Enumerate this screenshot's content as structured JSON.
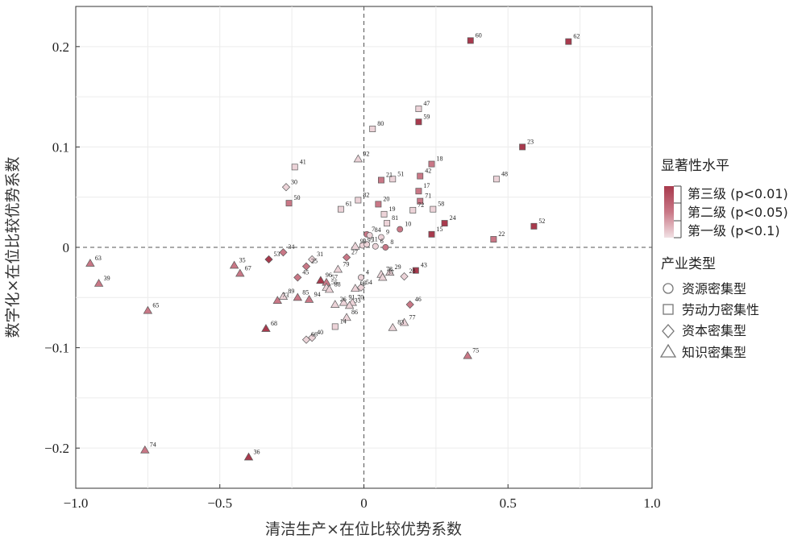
{
  "chart_data": {
    "type": "scatter",
    "xlabel": "清洁生产×在位比较优势系数",
    "ylabel": "数字化×在位比较优势系数",
    "xlim": [
      -1.0,
      1.0
    ],
    "ylim": [
      -0.24,
      0.24
    ],
    "x_ticks": [
      -1.0,
      -0.5,
      0,
      0.5,
      1.0
    ],
    "x_tick_labels": [
      "−1.0",
      "−0.5",
      "0",
      "0.5",
      "1.0"
    ],
    "y_ticks": [
      -0.2,
      -0.1,
      0,
      0.1,
      0.2
    ],
    "y_tick_labels": [
      "−0.2",
      "−0.1",
      "0",
      "0.1",
      "0.2"
    ],
    "grid": true,
    "reference_lines": {
      "x": 0,
      "y": 0
    },
    "legend_significance": {
      "title": "显著性水平",
      "items": [
        {
          "label": "第三级 (p<0.01)",
          "level": 3
        },
        {
          "label": "第二级 (p<0.05)",
          "level": 2
        },
        {
          "label": "第一级 (p<0.1)",
          "level": 1
        }
      ]
    },
    "legend_type": {
      "title": "产业类型",
      "items": [
        {
          "label": "资源密集型",
          "shape": "circle"
        },
        {
          "label": "劳动力密集性",
          "shape": "square"
        },
        {
          "label": "资本密集型",
          "shape": "diamond"
        },
        {
          "label": "知识密集型",
          "shape": "triangle"
        }
      ]
    },
    "colors": {
      "level3": "#a83a4d",
      "level2": "#c97786",
      "level1": "#ecd3d8",
      "edge": "#5a5a5a"
    },
    "points": [
      {
        "id": "62",
        "x": 0.71,
        "y": 0.205,
        "shape": "square",
        "level": 3
      },
      {
        "id": "60",
        "x": 0.37,
        "y": 0.206,
        "shape": "square",
        "level": 3
      },
      {
        "id": "47",
        "x": 0.19,
        "y": 0.138,
        "shape": "square",
        "level": 1
      },
      {
        "id": "59",
        "x": 0.19,
        "y": 0.125,
        "shape": "square",
        "level": 3
      },
      {
        "id": "80",
        "x": 0.03,
        "y": 0.118,
        "shape": "square",
        "level": 1
      },
      {
        "id": "23",
        "x": 0.55,
        "y": 0.1,
        "shape": "square",
        "level": 3
      },
      {
        "id": "18",
        "x": 0.235,
        "y": 0.083,
        "shape": "square",
        "level": 2
      },
      {
        "id": "92",
        "x": -0.02,
        "y": 0.088,
        "shape": "triangle",
        "level": 1
      },
      {
        "id": "41",
        "x": -0.24,
        "y": 0.08,
        "shape": "square",
        "level": 1
      },
      {
        "id": "42",
        "x": 0.195,
        "y": 0.071,
        "shape": "square",
        "level": 2
      },
      {
        "id": "21",
        "x": 0.06,
        "y": 0.067,
        "shape": "square",
        "level": 2
      },
      {
        "id": "51",
        "x": 0.1,
        "y": 0.068,
        "shape": "square",
        "level": 1
      },
      {
        "id": "48",
        "x": 0.46,
        "y": 0.068,
        "shape": "square",
        "level": 1
      },
      {
        "id": "30",
        "x": -0.27,
        "y": 0.06,
        "shape": "diamond",
        "level": 1
      },
      {
        "id": "17",
        "x": 0.19,
        "y": 0.056,
        "shape": "square",
        "level": 2
      },
      {
        "id": "82",
        "x": -0.02,
        "y": 0.047,
        "shape": "square",
        "level": 1
      },
      {
        "id": "20",
        "x": 0.05,
        "y": 0.043,
        "shape": "square",
        "level": 2
      },
      {
        "id": "71",
        "x": 0.195,
        "y": 0.046,
        "shape": "square",
        "level": 2
      },
      {
        "id": "50",
        "x": -0.26,
        "y": 0.044,
        "shape": "square",
        "level": 2
      },
      {
        "id": "61",
        "x": -0.08,
        "y": 0.038,
        "shape": "square",
        "level": 1
      },
      {
        "id": "19",
        "x": 0.07,
        "y": 0.033,
        "shape": "square",
        "level": 1
      },
      {
        "id": "58",
        "x": 0.24,
        "y": 0.038,
        "shape": "square",
        "level": 1
      },
      {
        "id": "72",
        "x": 0.17,
        "y": 0.037,
        "shape": "square",
        "level": 1
      },
      {
        "id": "81",
        "x": 0.08,
        "y": 0.024,
        "shape": "square",
        "level": 1
      },
      {
        "id": "24",
        "x": 0.28,
        "y": 0.024,
        "shape": "square",
        "level": 3
      },
      {
        "id": "52",
        "x": 0.59,
        "y": 0.021,
        "shape": "square",
        "level": 3
      },
      {
        "id": "15",
        "x": 0.235,
        "y": 0.013,
        "shape": "square",
        "level": 3
      },
      {
        "id": "22",
        "x": 0.45,
        "y": 0.008,
        "shape": "square",
        "level": 2
      },
      {
        "id": "10",
        "x": 0.125,
        "y": 0.018,
        "shape": "circle",
        "level": 2
      },
      {
        "id": "7",
        "x": 0.01,
        "y": 0.013,
        "shape": "circle",
        "level": 2
      },
      {
        "id": "84",
        "x": 0.02,
        "y": 0.012,
        "shape": "circle",
        "level": 1
      },
      {
        "id": "9",
        "x": 0.06,
        "y": 0.01,
        "shape": "circle",
        "level": 1
      },
      {
        "id": "93",
        "x": -0.03,
        "y": 0.001,
        "shape": "triangle",
        "level": 1
      },
      {
        "id": "95",
        "x": -0.005,
        "y": 0.002,
        "shape": "circle",
        "level": 1
      },
      {
        "id": "11",
        "x": 0.01,
        "y": 0.003,
        "shape": "circle",
        "level": 1
      },
      {
        "id": "6",
        "x": 0.04,
        "y": 0.001,
        "shape": "circle",
        "level": 1
      },
      {
        "id": "8",
        "x": 0.075,
        "y": 0.0,
        "shape": "circle",
        "level": 2
      },
      {
        "id": "34",
        "x": -0.28,
        "y": -0.005,
        "shape": "diamond",
        "level": 2
      },
      {
        "id": "53",
        "x": -0.33,
        "y": -0.012,
        "shape": "diamond",
        "level": 3
      },
      {
        "id": "31",
        "x": -0.18,
        "y": -0.012,
        "shape": "diamond",
        "level": 1
      },
      {
        "id": "27",
        "x": -0.06,
        "y": -0.01,
        "shape": "diamond",
        "level": 2
      },
      {
        "id": "35",
        "x": -0.45,
        "y": -0.018,
        "shape": "triangle",
        "level": 2
      },
      {
        "id": "25",
        "x": -0.2,
        "y": -0.019,
        "shape": "diamond",
        "level": 2
      },
      {
        "id": "63",
        "x": -0.95,
        "y": -0.016,
        "shape": "triangle",
        "level": 2
      },
      {
        "id": "29",
        "x": 0.09,
        "y": -0.025,
        "shape": "triangle",
        "level": 1
      },
      {
        "id": "43",
        "x": 0.18,
        "y": -0.023,
        "shape": "square",
        "level": 3
      },
      {
        "id": "79",
        "x": -0.09,
        "y": -0.022,
        "shape": "triangle",
        "level": 1
      },
      {
        "id": "67",
        "x": -0.43,
        "y": -0.026,
        "shape": "triangle",
        "level": 2
      },
      {
        "id": "45",
        "x": -0.23,
        "y": -0.03,
        "shape": "diamond",
        "level": 2
      },
      {
        "id": "96",
        "x": -0.15,
        "y": -0.033,
        "shape": "triangle",
        "level": 3
      },
      {
        "id": "57",
        "x": -0.13,
        "y": -0.035,
        "shape": "triangle",
        "level": 2
      },
      {
        "id": "4",
        "x": -0.01,
        "y": -0.03,
        "shape": "circle",
        "level": 1
      },
      {
        "id": "78",
        "x": 0.06,
        "y": -0.027,
        "shape": "triangle",
        "level": 1
      },
      {
        "id": "37",
        "x": 0.065,
        "y": -0.03,
        "shape": "triangle",
        "level": 1
      },
      {
        "id": "28",
        "x": 0.14,
        "y": -0.029,
        "shape": "diamond",
        "level": 1
      },
      {
        "id": "39",
        "x": -0.92,
        "y": -0.036,
        "shape": "triangle",
        "level": 2
      },
      {
        "id": "55",
        "x": -0.13,
        "y": -0.04,
        "shape": "triangle",
        "level": 1
      },
      {
        "id": "88",
        "x": -0.12,
        "y": -0.042,
        "shape": "triangle",
        "level": 1
      },
      {
        "id": "69",
        "x": -0.03,
        "y": -0.041,
        "shape": "triangle",
        "level": 1
      },
      {
        "id": "54",
        "x": -0.01,
        "y": -0.04,
        "shape": "diamond",
        "level": 1
      },
      {
        "id": "89",
        "x": -0.28,
        "y": -0.049,
        "shape": "triangle",
        "level": 1
      },
      {
        "id": "85",
        "x": -0.23,
        "y": -0.05,
        "shape": "triangle",
        "level": 2
      },
      {
        "id": "94",
        "x": -0.19,
        "y": -0.052,
        "shape": "triangle",
        "level": 2
      },
      {
        "id": "73",
        "x": -0.3,
        "y": -0.053,
        "shape": "triangle",
        "level": 2
      },
      {
        "id": "91",
        "x": -0.07,
        "y": -0.055,
        "shape": "triangle",
        "level": 1
      },
      {
        "id": "70",
        "x": -0.04,
        "y": -0.055,
        "shape": "triangle",
        "level": 1
      },
      {
        "id": "26",
        "x": -0.1,
        "y": -0.057,
        "shape": "triangle",
        "level": 1
      },
      {
        "id": "33",
        "x": -0.05,
        "y": -0.058,
        "shape": "triangle",
        "level": 1
      },
      {
        "id": "46",
        "x": 0.16,
        "y": -0.057,
        "shape": "diamond",
        "level": 2
      },
      {
        "id": "65",
        "x": -0.75,
        "y": -0.063,
        "shape": "triangle",
        "level": 2
      },
      {
        "id": "86",
        "x": -0.06,
        "y": -0.07,
        "shape": "triangle",
        "level": 1
      },
      {
        "id": "77",
        "x": 0.14,
        "y": -0.075,
        "shape": "triangle",
        "level": 1
      },
      {
        "id": "14",
        "x": -0.1,
        "y": -0.079,
        "shape": "square",
        "level": 1
      },
      {
        "id": "83",
        "x": 0.1,
        "y": -0.08,
        "shape": "triangle",
        "level": 1
      },
      {
        "id": "68",
        "x": -0.34,
        "y": -0.081,
        "shape": "triangle",
        "level": 3
      },
      {
        "id": "40",
        "x": -0.18,
        "y": -0.09,
        "shape": "diamond",
        "level": 1
      },
      {
        "id": "66",
        "x": -0.2,
        "y": -0.092,
        "shape": "diamond",
        "level": 1
      },
      {
        "id": "75",
        "x": 0.36,
        "y": -0.108,
        "shape": "triangle",
        "level": 2
      },
      {
        "id": "74",
        "x": -0.76,
        "y": -0.202,
        "shape": "triangle",
        "level": 2
      },
      {
        "id": "36",
        "x": -0.4,
        "y": -0.209,
        "shape": "triangle",
        "level": 3
      }
    ]
  }
}
